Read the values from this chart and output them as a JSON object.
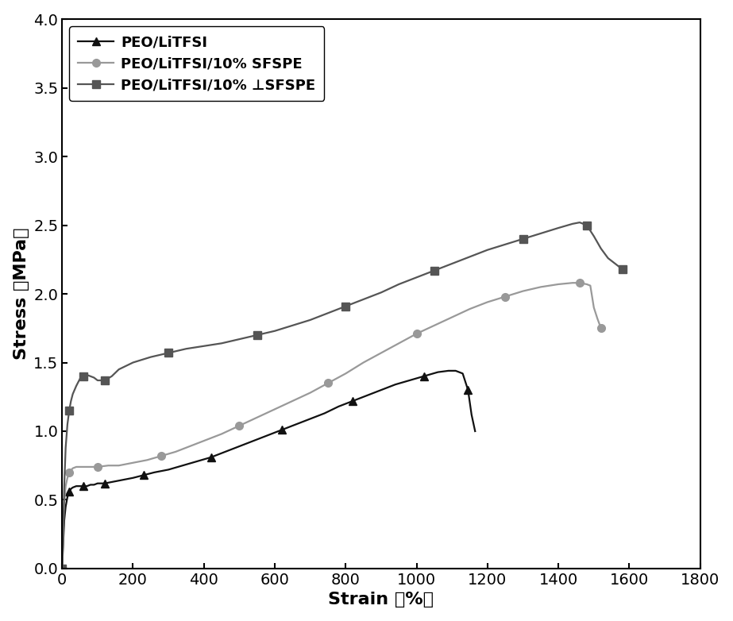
{
  "xlabel": "Strain （%）",
  "ylabel": "Stress （MPa）",
  "xlim": [
    0,
    1800
  ],
  "ylim": [
    0.0,
    4.0
  ],
  "xticks": [
    0,
    200,
    400,
    600,
    800,
    1000,
    1200,
    1400,
    1600,
    1800
  ],
  "yticks": [
    0.0,
    0.5,
    1.0,
    1.5,
    2.0,
    2.5,
    3.0,
    3.5,
    4.0
  ],
  "series": [
    {
      "label": "PEO/LiTFSI",
      "color": "#111111",
      "marker": "^",
      "markersize": 7,
      "linewidth": 1.6,
      "x": [
        0,
        3,
        6,
        10,
        15,
        20,
        25,
        30,
        40,
        50,
        60,
        70,
        80,
        90,
        100,
        120,
        140,
        160,
        180,
        200,
        230,
        260,
        300,
        340,
        380,
        420,
        460,
        500,
        540,
        580,
        620,
        660,
        700,
        740,
        780,
        820,
        860,
        900,
        940,
        980,
        1020,
        1060,
        1090,
        1110,
        1130,
        1145,
        1155,
        1165
      ],
      "y": [
        0.0,
        0.18,
        0.35,
        0.45,
        0.52,
        0.56,
        0.58,
        0.59,
        0.6,
        0.6,
        0.6,
        0.6,
        0.61,
        0.61,
        0.62,
        0.62,
        0.63,
        0.64,
        0.65,
        0.66,
        0.68,
        0.7,
        0.72,
        0.75,
        0.78,
        0.81,
        0.85,
        0.89,
        0.93,
        0.97,
        1.01,
        1.05,
        1.09,
        1.13,
        1.18,
        1.22,
        1.26,
        1.3,
        1.34,
        1.37,
        1.4,
        1.43,
        1.44,
        1.44,
        1.42,
        1.3,
        1.12,
        1.0
      ]
    },
    {
      "label": "PEO/LiTFSI/10% SFSPE",
      "color": "#999999",
      "marker": "o",
      "markersize": 7,
      "linewidth": 1.6,
      "x": [
        0,
        3,
        6,
        10,
        15,
        20,
        30,
        40,
        60,
        80,
        100,
        130,
        160,
        200,
        240,
        280,
        320,
        360,
        400,
        450,
        500,
        550,
        600,
        650,
        700,
        750,
        800,
        850,
        900,
        950,
        1000,
        1050,
        1100,
        1150,
        1200,
        1250,
        1300,
        1350,
        1400,
        1440,
        1460,
        1480,
        1490,
        1500,
        1510,
        1520
      ],
      "y": [
        0.0,
        0.25,
        0.48,
        0.6,
        0.66,
        0.7,
        0.73,
        0.74,
        0.74,
        0.74,
        0.74,
        0.75,
        0.75,
        0.77,
        0.79,
        0.82,
        0.85,
        0.89,
        0.93,
        0.98,
        1.04,
        1.1,
        1.16,
        1.22,
        1.28,
        1.35,
        1.42,
        1.5,
        1.57,
        1.64,
        1.71,
        1.77,
        1.83,
        1.89,
        1.94,
        1.98,
        2.02,
        2.05,
        2.07,
        2.08,
        2.08,
        2.07,
        2.06,
        1.9,
        1.82,
        1.75
      ]
    },
    {
      "label": "PEO/LiTFSI/10% ⊥SFSPE",
      "color": "#555555",
      "marker": "s",
      "markersize": 7,
      "linewidth": 1.6,
      "x": [
        0,
        3,
        6,
        10,
        15,
        20,
        25,
        30,
        40,
        50,
        60,
        70,
        80,
        90,
        100,
        120,
        140,
        160,
        200,
        250,
        300,
        350,
        400,
        450,
        500,
        550,
        600,
        650,
        700,
        750,
        800,
        850,
        900,
        950,
        1000,
        1050,
        1100,
        1150,
        1200,
        1250,
        1300,
        1350,
        1400,
        1440,
        1460,
        1480,
        1500,
        1520,
        1540,
        1560,
        1580
      ],
      "y": [
        0.0,
        0.28,
        0.6,
        0.88,
        1.05,
        1.15,
        1.22,
        1.27,
        1.33,
        1.38,
        1.4,
        1.41,
        1.4,
        1.39,
        1.37,
        1.37,
        1.4,
        1.45,
        1.5,
        1.54,
        1.57,
        1.6,
        1.62,
        1.64,
        1.67,
        1.7,
        1.73,
        1.77,
        1.81,
        1.86,
        1.91,
        1.96,
        2.01,
        2.07,
        2.12,
        2.17,
        2.22,
        2.27,
        2.32,
        2.36,
        2.4,
        2.44,
        2.48,
        2.51,
        2.52,
        2.5,
        2.42,
        2.33,
        2.26,
        2.22,
        2.18
      ]
    }
  ],
  "marker_every": [
    5,
    5,
    5
  ],
  "background_color": "#ffffff",
  "tick_fontsize": 14,
  "label_fontsize": 16,
  "legend_fontsize": 13
}
